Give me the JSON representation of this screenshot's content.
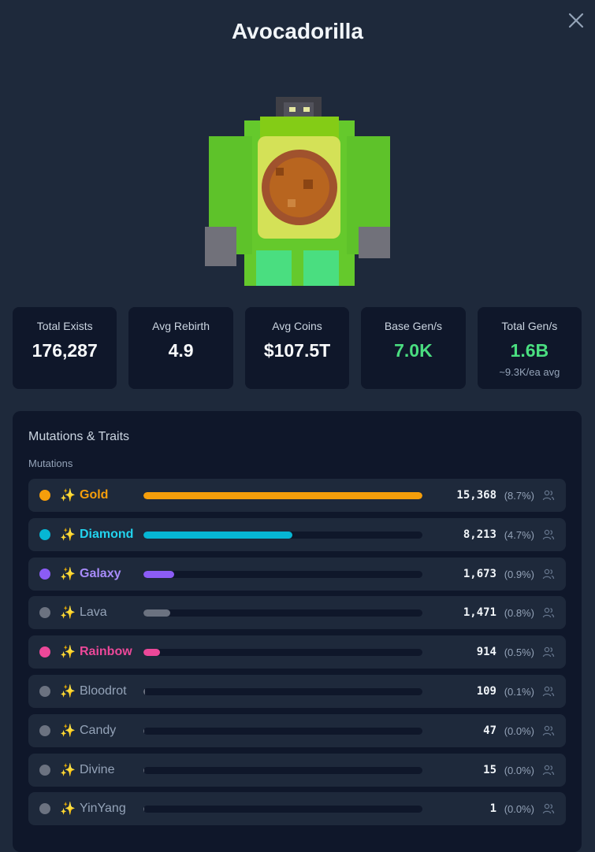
{
  "modal": {
    "title": "Avocadorilla"
  },
  "stats": [
    {
      "label": "Total Exists",
      "value": "176,287",
      "accent": "#f8fafc"
    },
    {
      "label": "Avg Rebirth",
      "value": "4.9",
      "accent": "#f8fafc"
    },
    {
      "label": "Avg Coins",
      "value": "$107.5T",
      "accent": "#f8fafc"
    },
    {
      "label": "Base Gen/s",
      "value": "7.0K",
      "accent": "#4ade80"
    },
    {
      "label": "Total Gen/s",
      "value": "1.6B",
      "sub": "~9.3K/ea avg",
      "accent": "#4ade80"
    }
  ],
  "traits": {
    "title": "Mutations & Traits",
    "subtitle": "Mutations",
    "icon": "sparkles-icon",
    "rows": [
      {
        "name": "Gold",
        "count": "15,368",
        "pct": "(8.7%)",
        "fill": 1.0,
        "color": "#f59e0b",
        "dot": "#f59e0b",
        "textColor": "#f59e0b",
        "bold": true
      },
      {
        "name": "Diamond",
        "count": "8,213",
        "pct": "(4.7%)",
        "fill": 0.534,
        "color": "#06b6d4",
        "dot": "#06b6d4",
        "textColor": "#22d3ee",
        "bold": true
      },
      {
        "name": "Galaxy",
        "count": "1,673",
        "pct": "(0.9%)",
        "fill": 0.109,
        "color": "#8b5cf6",
        "dot": "#8b5cf6",
        "textColor": "#a78bfa",
        "bold": true
      },
      {
        "name": "Lava",
        "count": "1,471",
        "pct": "(0.8%)",
        "fill": 0.096,
        "color": "#6b7280",
        "dot": "#6b7280",
        "textColor": "#94a3b8",
        "bold": false
      },
      {
        "name": "Rainbow",
        "count": "914",
        "pct": "(0.5%)",
        "fill": 0.06,
        "color": "#ec4899",
        "dot": "#ec4899",
        "textColor": "#ec4899",
        "bold": true
      },
      {
        "name": "Bloodrot",
        "count": "109",
        "pct": "(0.1%)",
        "fill": 0.007,
        "color": "#6b7280",
        "dot": "#6b7280",
        "textColor": "#94a3b8",
        "bold": false
      },
      {
        "name": "Candy",
        "count": "47",
        "pct": "(0.0%)",
        "fill": 0.003,
        "color": "#6b7280",
        "dot": "#6b7280",
        "textColor": "#94a3b8",
        "bold": false
      },
      {
        "name": "Divine",
        "count": "15",
        "pct": "(0.0%)",
        "fill": 0.001,
        "color": "#6b7280",
        "dot": "#6b7280",
        "textColor": "#94a3b8",
        "bold": false
      },
      {
        "name": "YinYang",
        "count": "1",
        "pct": "(0.0%)",
        "fill": 0.0005,
        "color": "#6b7280",
        "dot": "#6b7280",
        "textColor": "#94a3b8",
        "bold": false
      }
    ]
  }
}
